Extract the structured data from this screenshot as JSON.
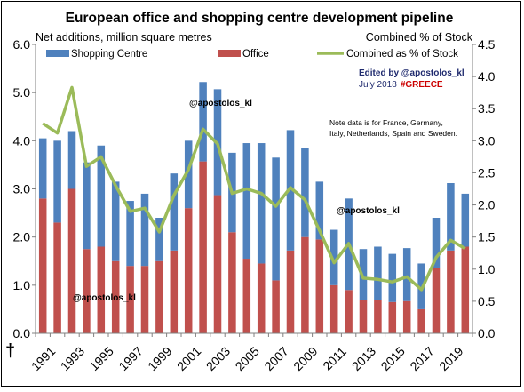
{
  "chart_data": {
    "type": "bar",
    "stacked": true,
    "title": "European office and shopping centre development pipeline",
    "ylabel_left": "Net additions, million square metres",
    "ylabel_right": "Combined % of Stock",
    "x": [
      1991,
      1992,
      1993,
      1994,
      1995,
      1996,
      1997,
      1998,
      1999,
      2000,
      2001,
      2002,
      2003,
      2004,
      2005,
      2006,
      2007,
      2008,
      2009,
      2010,
      2011,
      2012,
      2013,
      2014,
      2015,
      2016,
      2017,
      2018,
      2019,
      2020
    ],
    "x_tick_labels": [
      "1991",
      "1993",
      "1995",
      "1997",
      "1999",
      "2001",
      "2003",
      "2005",
      "2007",
      "2009",
      "2011",
      "2013",
      "2015",
      "2017",
      "2019"
    ],
    "ylim_left": [
      0,
      6
    ],
    "yticks_left": [
      "0.0",
      "1.0",
      "2.0",
      "3.0",
      "4.0",
      "5.0",
      "6.0"
    ],
    "ylim_right": [
      0,
      4.5
    ],
    "yticks_right": [
      "0.0",
      "0.5",
      "1.0",
      "1.5",
      "2.0",
      "2.5",
      "3.0",
      "3.5",
      "4.0",
      "4.5"
    ],
    "grid": false,
    "legend_position": "top",
    "series": [
      {
        "name": "Shopping Centre",
        "axis": "left",
        "color": "#4f81bd",
        "values": [
          1.25,
          1.7,
          1.2,
          1.8,
          2.1,
          1.65,
          1.35,
          1.5,
          0.9,
          1.6,
          1.4,
          1.65,
          2.2,
          1.65,
          2.4,
          2.5,
          2.55,
          2.5,
          1.85,
          1.2,
          1.15,
          1.9,
          1.05,
          1.1,
          1.0,
          1.1,
          0.95,
          1.05,
          1.4,
          1.1
        ]
      },
      {
        "name": "Office",
        "axis": "left",
        "color": "#c0504d",
        "values": [
          2.8,
          2.3,
          3.0,
          1.75,
          1.8,
          1.5,
          1.4,
          1.4,
          1.5,
          1.72,
          2.6,
          3.57,
          2.87,
          2.1,
          1.55,
          1.45,
          1.1,
          1.72,
          2.0,
          1.95,
          1.0,
          0.9,
          0.7,
          0.7,
          0.65,
          0.67,
          0.5,
          1.35,
          1.72,
          1.8
        ]
      },
      {
        "name": "Combined as % of Stock",
        "axis": "right",
        "type": "line",
        "color": "#9bbb59",
        "values": [
          3.27,
          3.12,
          3.83,
          2.6,
          2.75,
          2.3,
          1.9,
          1.95,
          1.58,
          2.15,
          2.55,
          3.18,
          2.95,
          2.18,
          2.25,
          2.18,
          1.98,
          2.27,
          2.08,
          1.6,
          1.1,
          1.4,
          0.86,
          0.84,
          0.8,
          0.88,
          0.68,
          1.18,
          1.45,
          1.32
        ]
      }
    ]
  },
  "annotations": {
    "edited_by": "Edited by  @apostolos_kl",
    "date_prefix": "July 2018",
    "hashtag": "#GREECE",
    "note_line1": "Note data is for France, Germany,",
    "note_line2": "Italy, Netherlands, Spain and Sweden.",
    "watermarks": [
      "@apostolos_kl",
      "@apostolos_kl",
      "@apostolos_kl"
    ],
    "corner_symbol": "†"
  },
  "colors": {
    "hashtag": "#cc0000",
    "edited_by": "#1f2a6e",
    "axis": "#808080"
  }
}
